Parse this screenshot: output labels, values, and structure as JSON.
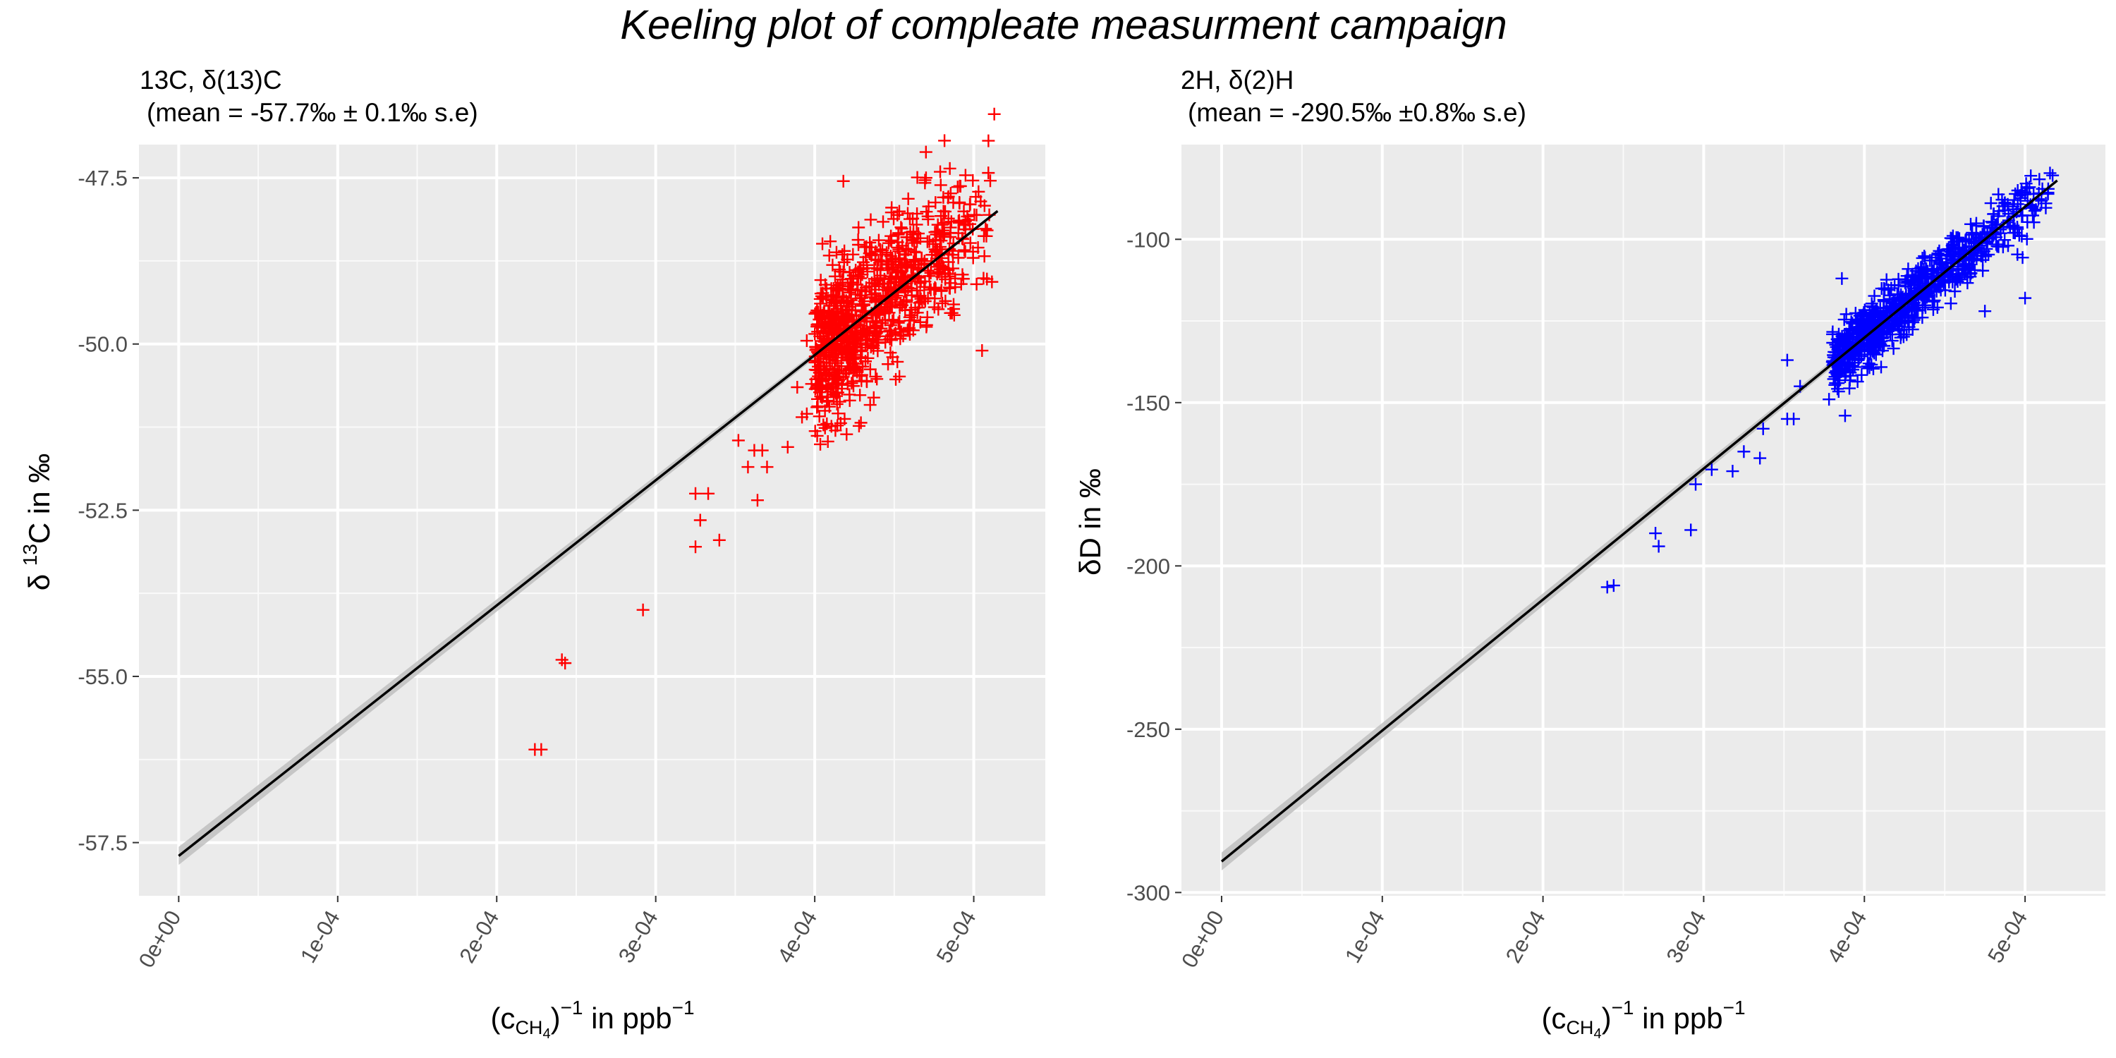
{
  "title": "Keeling plot of compleate measurment campaign",
  "chart_data": [
    {
      "type": "scatter",
      "subtitle_line1": "13C, δ(13)C",
      "subtitle_line2": "(mean = -57.7‰ ± 0.1‰ s.e)",
      "xlabel": "(cCH4)−1 in ppb−1",
      "ylabel": "δ13C in ‰",
      "xlim": [
        -2.5e-05,
        0.000545
      ],
      "ylim": [
        -58.3,
        -47.0
      ],
      "x_ticks": [
        0,
        0.0001,
        0.0002,
        0.0003,
        0.0004,
        0.0005
      ],
      "x_tick_labels": [
        "0e+00",
        "1e-04",
        "2e-04",
        "3e-04",
        "4e-04",
        "5e-04"
      ],
      "y_ticks": [
        -47.5,
        -50.0,
        -52.5,
        -55.0,
        -57.5
      ],
      "y_tick_labels": [
        "-47.5",
        "-50.0",
        "-52.5",
        "-55.0",
        "-57.5"
      ],
      "marker": "+",
      "point_color": "#ff0000",
      "fit_line": {
        "x": [
          0,
          0.000515
        ],
        "y": [
          -57.7,
          -48.0
        ],
        "color": "#000000"
      },
      "confidence_band_color": "#bdbdbd",
      "cluster": {
        "x_range": [
          0.0004,
          0.000515
        ],
        "center_slope_intercept": [
          -57.7,
          18835
        ],
        "spread": 0.55,
        "count": 900
      },
      "points": [
        [
          0.000224,
          -56.1
        ],
        [
          0.000228,
          -56.1
        ],
        [
          0.000241,
          -54.75
        ],
        [
          0.000243,
          -54.8
        ],
        [
          0.000292,
          -54.0
        ],
        [
          0.000325,
          -52.25
        ],
        [
          0.000333,
          -52.25
        ],
        [
          0.000328,
          -52.65
        ],
        [
          0.000325,
          -53.05
        ],
        [
          0.00034,
          -52.95
        ],
        [
          0.000358,
          -51.85
        ],
        [
          0.000362,
          -51.6
        ],
        [
          0.000367,
          -51.6
        ],
        [
          0.00037,
          -51.85
        ],
        [
          0.000364,
          -52.35
        ],
        [
          0.000352,
          -51.45
        ],
        [
          0.000383,
          -51.55
        ],
        [
          0.000392,
          -51.1
        ],
        [
          0.000395,
          -51.05
        ],
        [
          0.000389,
          -50.65
        ],
        [
          0.000398,
          -50.6
        ],
        [
          0.000415,
          -50.55
        ],
        [
          0.000422,
          -50.85
        ],
        [
          0.000413,
          -51.3
        ],
        [
          0.000418,
          -47.55
        ],
        [
          0.00047,
          -47.5
        ],
        [
          0.000395,
          -49.95
        ],
        [
          0.0004,
          -50.25
        ]
      ]
    },
    {
      "type": "scatter",
      "subtitle_line1": "2H, δ(2)H",
      "subtitle_line2": "(mean = -290.5‰ ±0.8‰ s.e)",
      "xlabel": "(cCH4)−1 in ppb−1",
      "ylabel": "δD in ‰",
      "xlim": [
        -2.5e-05,
        0.00055
      ],
      "ylim": [
        -301,
        -71
      ],
      "x_ticks": [
        0,
        0.0001,
        0.0002,
        0.0003,
        0.0004,
        0.0005
      ],
      "x_tick_labels": [
        "0e+00",
        "1e-04",
        "2e-04",
        "3e-04",
        "4e-04",
        "5e-04"
      ],
      "y_ticks": [
        -100,
        -150,
        -200,
        -250,
        -300
      ],
      "y_tick_labels": [
        "-100",
        "-150",
        "-200",
        "-250",
        "-300"
      ],
      "marker": "+",
      "point_color": "#0000ff",
      "fit_line": {
        "x": [
          0,
          0.00052
        ],
        "y": [
          -290.5,
          -82.0
        ],
        "color": "#000000"
      },
      "confidence_band_color": "#bdbdbd",
      "cluster": {
        "x_range": [
          0.00038,
          0.00052
        ],
        "center_slope_intercept": [
          -290.5,
          401000
        ],
        "spread": 4.5,
        "count": 800
      },
      "points": [
        [
          0.00024,
          -206.5
        ],
        [
          0.000244,
          -206.0
        ],
        [
          0.00027,
          -190.0
        ],
        [
          0.000272,
          -194.0
        ],
        [
          0.000292,
          -189.0
        ],
        [
          0.000295,
          -175.0
        ],
        [
          0.000305,
          -170.5
        ],
        [
          0.000318,
          -171.0
        ],
        [
          0.000325,
          -165.0
        ],
        [
          0.000335,
          -167.0
        ],
        [
          0.000337,
          -158.0
        ],
        [
          0.000352,
          -155.0
        ],
        [
          0.000356,
          -155.0
        ],
        [
          0.000352,
          -137.0
        ],
        [
          0.00036,
          -145.0
        ],
        [
          0.000378,
          -149.0
        ],
        [
          0.000382,
          -144.0
        ],
        [
          0.000388,
          -154.0
        ],
        [
          0.000386,
          -112.0
        ],
        [
          0.00039,
          -136.0
        ],
        [
          0.000392,
          -133.0
        ],
        [
          0.000398,
          -128.5
        ],
        [
          0.0005,
          -118.0
        ],
        [
          0.000475,
          -122.0
        ]
      ]
    }
  ]
}
